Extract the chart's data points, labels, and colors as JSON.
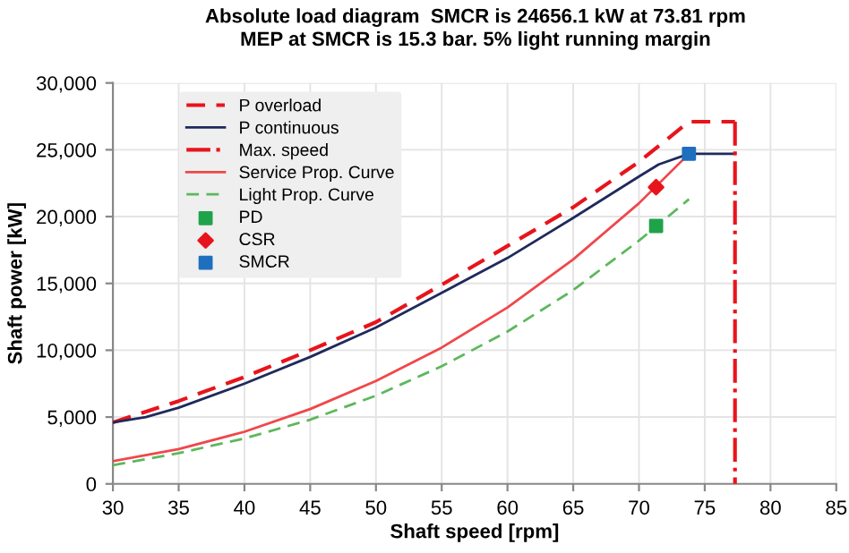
{
  "chart_data": {
    "type": "line",
    "title": "Absolute load diagram  SMCR is 24656.1 kW at 73.81 rpm\nMEP at SMCR is 15.3 bar. 5% light running margin",
    "xlabel": "Shaft speed [rpm]",
    "ylabel": "Shaft power [kW]",
    "xlim": [
      30,
      85
    ],
    "xticks": [
      30,
      35,
      40,
      45,
      50,
      55,
      60,
      65,
      70,
      75,
      80,
      85
    ],
    "ylim": [
      0,
      30000
    ],
    "yticks": [
      {
        "value": 0,
        "label": "0"
      },
      {
        "value": 5000,
        "label": "5,000"
      },
      {
        "value": 10000,
        "label": "10,000"
      },
      {
        "value": 15000,
        "label": "15,000"
      },
      {
        "value": 20000,
        "label": "20,000"
      },
      {
        "value": 25000,
        "label": "25,000"
      },
      {
        "value": 30000,
        "label": "30,000"
      }
    ],
    "grid": true,
    "legend": "top left",
    "series": [
      {
        "name": "P overload",
        "type": "line",
        "line_style": "dashed",
        "color": "#e8141b",
        "x": [
          30,
          35,
          40,
          45,
          50,
          55,
          60,
          65,
          70,
          73.8,
          77.3
        ],
        "values": [
          4600,
          6200,
          8000,
          10000,
          12100,
          14900,
          17800,
          20700,
          24100,
          27100,
          27100
        ]
      },
      {
        "name": "P continuous",
        "type": "line",
        "line_style": "solid",
        "color": "#1f2a5c",
        "x": [
          30,
          32.5,
          35,
          40,
          45,
          50,
          55,
          60,
          65,
          70,
          71.5,
          73.8,
          77.3
        ],
        "values": [
          4600,
          5000,
          5700,
          7500,
          9500,
          11700,
          14300,
          16900,
          19900,
          23000,
          23900,
          24700,
          24700
        ]
      },
      {
        "name": "Max. speed",
        "type": "line",
        "line_style": "dashdot",
        "color": "#e8141b",
        "x": [
          77.3,
          77.3
        ],
        "values": [
          27100,
          0
        ]
      },
      {
        "name": "Service Prop. Curve",
        "type": "line",
        "line_style": "solid",
        "color": "#f0474a",
        "x": [
          30,
          35,
          40,
          45,
          50,
          55,
          60,
          65,
          70,
          73.8
        ],
        "values": [
          1700,
          2600,
          3900,
          5600,
          7700,
          10200,
          13200,
          16800,
          21000,
          24700
        ]
      },
      {
        "name": "Light Prop. Curve",
        "type": "line",
        "line_style": "dashed",
        "color": "#5cb85c",
        "x": [
          30,
          35,
          40,
          45,
          50,
          55,
          60,
          65,
          70,
          73.8
        ],
        "values": [
          1400,
          2300,
          3400,
          4800,
          6600,
          8800,
          11400,
          14500,
          18200,
          21300
        ]
      },
      {
        "name": "PD",
        "type": "scatter",
        "marker": "square",
        "color": "#1fa34a",
        "x": [
          71.3
        ],
        "values": [
          19300
        ]
      },
      {
        "name": "CSR",
        "type": "scatter",
        "marker": "diamond",
        "color": "#e8141b",
        "x": [
          71.3
        ],
        "values": [
          22200
        ]
      },
      {
        "name": "SMCR",
        "type": "scatter",
        "marker": "square",
        "color": "#1f6fbf",
        "x": [
          73.8
        ],
        "values": [
          24700
        ]
      }
    ]
  }
}
